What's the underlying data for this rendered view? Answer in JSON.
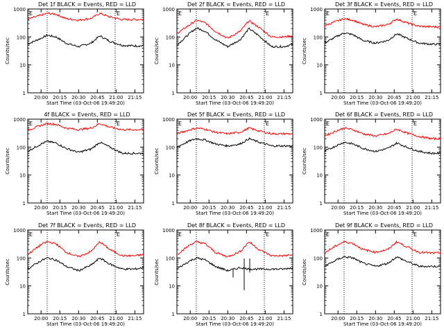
{
  "figure": {
    "background": "#ffffff",
    "line_colors": {
      "events": "#000000",
      "lld": "#ff0000"
    }
  },
  "chart_data": [
    {
      "type": "line",
      "title": "Det 1f BLACK = Events, RED = LLD",
      "xlabel": "Start Time (03-Oct-06 19:49:20)",
      "ylabel": "Counts/sec",
      "y_scale": "log",
      "ylim": [
        1,
        1000
      ],
      "yticks": [
        "1",
        "10",
        "100",
        "1000"
      ],
      "xticks": [
        "20:00",
        "20:15",
        "20:30",
        "20:45",
        "21:00",
        "21:15"
      ],
      "markers": [
        "E",
        "E"
      ],
      "series": [
        {
          "name": "Events",
          "color": "#000000",
          "x": [
            "19:49",
            "20:00",
            "20:05",
            "20:12",
            "20:20",
            "20:30",
            "20:40",
            "20:47",
            "20:55",
            "21:05",
            "21:15",
            "21:22"
          ],
          "values": [
            55,
            90,
            115,
            100,
            60,
            45,
            60,
            110,
            70,
            50,
            48,
            48
          ]
        },
        {
          "name": "LLD",
          "color": "#ff0000",
          "x": [
            "19:49",
            "20:00",
            "20:05",
            "20:12",
            "20:20",
            "20:30",
            "20:40",
            "20:47",
            "20:55",
            "21:05",
            "21:15",
            "21:22"
          ],
          "values": [
            430,
            600,
            700,
            650,
            450,
            400,
            460,
            700,
            520,
            420,
            420,
            420
          ]
        }
      ]
    },
    {
      "type": "line",
      "title": "Det 2f BLACK = Events, RED = LLD",
      "xlabel": "Start Time (03-Oct-06 19:49:20)",
      "ylabel": "Counts/sec",
      "y_scale": "log",
      "ylim": [
        1,
        1000
      ],
      "yticks": [
        "1",
        "10",
        "100",
        "1000"
      ],
      "xticks": [
        "20:00",
        "20:15",
        "20:30",
        "20:45",
        "21:00",
        "21:15"
      ],
      "markers": [
        "E",
        "E"
      ],
      "series": [
        {
          "name": "Events",
          "color": "#000000",
          "x": [
            "19:49",
            "20:00",
            "20:05",
            "20:12",
            "20:20",
            "20:30",
            "20:40",
            "20:47",
            "20:55",
            "21:05",
            "21:15",
            "21:22"
          ],
          "values": [
            50,
            140,
            210,
            160,
            80,
            45,
            80,
            200,
            110,
            45,
            45,
            55
          ]
        },
        {
          "name": "LLD",
          "color": "#ff0000",
          "x": [
            "19:49",
            "20:00",
            "20:05",
            "20:12",
            "20:20",
            "20:30",
            "20:40",
            "20:47",
            "20:55",
            "21:05",
            "21:15",
            "21:22"
          ],
          "values": [
            130,
            280,
            400,
            320,
            160,
            90,
            160,
            380,
            220,
            100,
            100,
            110
          ]
        }
      ]
    },
    {
      "type": "line",
      "title": "Det 3f BLACK = Events, RED = LLD",
      "xlabel": "Start Time (03-Oct-06 19:49:20)",
      "ylabel": "Counts/sec",
      "y_scale": "log",
      "ylim": [
        1,
        1000
      ],
      "yticks": [
        "1",
        "10",
        "100",
        "1000"
      ],
      "xticks": [
        "20:00",
        "20:15",
        "20:30",
        "20:45",
        "21:00",
        "21:15"
      ],
      "markers": [
        "E",
        "E"
      ],
      "series": [
        {
          "name": "Events",
          "color": "#000000",
          "x": [
            "19:49",
            "20:00",
            "20:05",
            "20:12",
            "20:20",
            "20:30",
            "20:40",
            "20:47",
            "20:55",
            "21:05",
            "21:15",
            "21:22"
          ],
          "values": [
            60,
            110,
            140,
            120,
            75,
            60,
            75,
            130,
            90,
            60,
            55,
            55
          ]
        },
        {
          "name": "LLD",
          "color": "#ff0000",
          "x": [
            "19:49",
            "20:00",
            "20:05",
            "20:12",
            "20:20",
            "20:30",
            "20:40",
            "20:47",
            "20:55",
            "21:05",
            "21:15",
            "21:22"
          ],
          "values": [
            250,
            380,
            450,
            400,
            280,
            230,
            280,
            440,
            320,
            240,
            230,
            230
          ]
        }
      ]
    },
    {
      "type": "line",
      "title": "4f BLACK = Events, RED = LLD",
      "xlabel": "Start Time (03-Oct-06 19:49:20)",
      "ylabel": "Counts/sec",
      "y_scale": "log",
      "ylim": [
        1,
        1000
      ],
      "yticks": [
        "1",
        "10",
        "100",
        "1000"
      ],
      "xticks": [
        "20:00",
        "20:15",
        "20:30",
        "20:45",
        "21:00",
        "21:15"
      ],
      "markers": [
        "E",
        "E"
      ],
      "series": [
        {
          "name": "Events",
          "color": "#000000",
          "x": [
            "19:49",
            "20:00",
            "20:05",
            "20:12",
            "20:20",
            "20:30",
            "20:40",
            "20:47",
            "20:55",
            "21:05",
            "21:15",
            "21:22"
          ],
          "values": [
            70,
            130,
            160,
            140,
            90,
            65,
            85,
            150,
            100,
            60,
            60,
            60
          ]
        },
        {
          "name": "LLD",
          "color": "#ff0000",
          "x": [
            "19:49",
            "20:00",
            "20:05",
            "20:12",
            "20:20",
            "20:30",
            "20:40",
            "20:47",
            "20:55",
            "21:05",
            "21:15",
            "21:22"
          ],
          "values": [
            400,
            600,
            700,
            650,
            480,
            420,
            480,
            700,
            520,
            420,
            420,
            420
          ]
        }
      ]
    },
    {
      "type": "line",
      "title": "Det 5f BLACK = Events, RED = LLD",
      "xlabel": "Start Time (03-Oct-06 19:49:20)",
      "ylabel": "Counts/sec",
      "y_scale": "log",
      "ylim": [
        1,
        1000
      ],
      "yticks": [
        "1",
        "10",
        "100",
        "1000"
      ],
      "xticks": [
        "20:00",
        "20:15",
        "20:30",
        "20:45",
        "21:00",
        "21:15"
      ],
      "markers": [
        "E",
        "E"
      ],
      "series": [
        {
          "name": "Events",
          "color": "#000000",
          "x": [
            "19:49",
            "20:00",
            "20:05",
            "20:12",
            "20:20",
            "20:30",
            "20:40",
            "20:47",
            "20:55",
            "21:05",
            "21:15",
            "21:22"
          ],
          "values": [
            100,
            170,
            200,
            180,
            130,
            110,
            130,
            200,
            150,
            110,
            110,
            110
          ]
        },
        {
          "name": "LLD",
          "color": "#ff0000",
          "x": [
            "19:49",
            "20:00",
            "20:05",
            "20:12",
            "20:20",
            "20:30",
            "20:40",
            "20:47",
            "20:55",
            "21:05",
            "21:15",
            "21:22"
          ],
          "values": [
            300,
            420,
            480,
            440,
            340,
            300,
            340,
            480,
            380,
            300,
            300,
            300
          ]
        }
      ]
    },
    {
      "type": "line",
      "title": "Det 6f BLACK = Events, RED = LLD",
      "xlabel": "Start Time (03-Oct-06 19:49:20)",
      "ylabel": "Counts/sec",
      "y_scale": "log",
      "ylim": [
        1,
        1000
      ],
      "yticks": [
        "1",
        "10",
        "100",
        "1000"
      ],
      "xticks": [
        "20:00",
        "20:15",
        "20:30",
        "20:45",
        "21:00",
        "21:15"
      ],
      "markers": [
        "E",
        "E"
      ],
      "series": [
        {
          "name": "Events",
          "color": "#000000",
          "x": [
            "19:49",
            "20:00",
            "20:05",
            "20:12",
            "20:20",
            "20:30",
            "20:40",
            "20:47",
            "20:55",
            "21:05",
            "21:15",
            "21:22"
          ],
          "values": [
            70,
            120,
            150,
            130,
            90,
            70,
            90,
            140,
            100,
            70,
            60,
            60
          ]
        },
        {
          "name": "LLD",
          "color": "#ff0000",
          "x": [
            "19:49",
            "20:00",
            "20:05",
            "20:12",
            "20:20",
            "20:30",
            "20:40",
            "20:47",
            "20:55",
            "21:05",
            "21:15",
            "21:22"
          ],
          "values": [
            250,
            400,
            480,
            420,
            300,
            250,
            300,
            440,
            320,
            240,
            200,
            200
          ]
        }
      ]
    },
    {
      "type": "line",
      "title": "Det 7f BLACK = Events, RED = LLD",
      "xlabel": "Start Time (03-Oct-06 19:49:20)",
      "ylabel": "Counts/sec",
      "y_scale": "log",
      "ylim": [
        1,
        1000
      ],
      "yticks": [
        "1",
        "10",
        "100",
        "1000"
      ],
      "xticks": [
        "20:00",
        "20:15",
        "20:30",
        "20:45",
        "21:00",
        "21:15"
      ],
      "markers": [
        "E",
        "E"
      ],
      "series": [
        {
          "name": "Events",
          "color": "#000000",
          "x": [
            "19:49",
            "20:00",
            "20:05",
            "20:12",
            "20:20",
            "20:30",
            "20:40",
            "20:47",
            "20:55",
            "21:05",
            "21:15",
            "21:22"
          ],
          "values": [
            40,
            80,
            100,
            85,
            50,
            35,
            55,
            100,
            60,
            40,
            40,
            45
          ]
        },
        {
          "name": "LLD",
          "color": "#ff0000",
          "x": [
            "19:49",
            "20:00",
            "20:05",
            "20:12",
            "20:20",
            "20:30",
            "20:40",
            "20:47",
            "20:55",
            "21:05",
            "21:15",
            "21:22"
          ],
          "values": [
            130,
            300,
            380,
            320,
            160,
            110,
            170,
            380,
            200,
            120,
            120,
            130
          ]
        }
      ]
    },
    {
      "type": "line",
      "title": "Det 8f BLACK = Events, RED = LLD",
      "xlabel": "Start Time (03-Oct-06 19:49:20)",
      "ylabel": "Counts/sec",
      "y_scale": "log",
      "ylim": [
        1,
        1000
      ],
      "yticks": [
        "1",
        "10",
        "100",
        "1000"
      ],
      "xticks": [
        "20:00",
        "20:15",
        "20:30",
        "20:45",
        "21:00",
        "21:15"
      ],
      "markers": [
        "E",
        "E"
      ],
      "series": [
        {
          "name": "Events",
          "color": "#000000",
          "x": [
            "19:49",
            "20:00",
            "20:05",
            "20:12",
            "20:20",
            "20:30",
            "20:40",
            "20:47",
            "20:55",
            "21:05",
            "21:15",
            "21:22"
          ],
          "values": [
            40,
            80,
            100,
            85,
            50,
            35,
            45,
            40,
            40,
            40,
            40,
            45
          ]
        },
        {
          "name": "LLD",
          "color": "#ff0000",
          "x": [
            "19:49",
            "20:00",
            "20:05",
            "20:12",
            "20:20",
            "20:30",
            "20:40",
            "20:47",
            "20:55",
            "21:05",
            "21:15",
            "21:22"
          ],
          "values": [
            130,
            300,
            380,
            320,
            160,
            110,
            170,
            380,
            200,
            120,
            120,
            130
          ]
        }
      ]
    },
    {
      "type": "line",
      "title": "Det 9f BLACK = Events, RED = LLD",
      "xlabel": "Start Time (03-Oct-06 19:49:20)",
      "ylabel": "Counts/sec",
      "y_scale": "log",
      "ylim": [
        1,
        1000
      ],
      "yticks": [
        "1",
        "10",
        "100",
        "1000"
      ],
      "xticks": [
        "20:00",
        "20:15",
        "20:30",
        "20:45",
        "21:00",
        "21:15"
      ],
      "markers": [
        "E",
        "E"
      ],
      "series": [
        {
          "name": "Events",
          "color": "#000000",
          "x": [
            "19:49",
            "20:00",
            "20:05",
            "20:12",
            "20:20",
            "20:30",
            "20:40",
            "20:47",
            "20:55",
            "21:05",
            "21:15",
            "21:22"
          ],
          "values": [
            50,
            90,
            110,
            100,
            65,
            50,
            65,
            110,
            75,
            50,
            50,
            50
          ]
        },
        {
          "name": "LLD",
          "color": "#ff0000",
          "x": [
            "19:49",
            "20:00",
            "20:05",
            "20:12",
            "20:20",
            "20:30",
            "20:40",
            "20:47",
            "20:55",
            "21:05",
            "21:15",
            "21:22"
          ],
          "values": [
            150,
            300,
            380,
            330,
            200,
            160,
            200,
            380,
            250,
            160,
            150,
            150
          ]
        }
      ]
    }
  ]
}
